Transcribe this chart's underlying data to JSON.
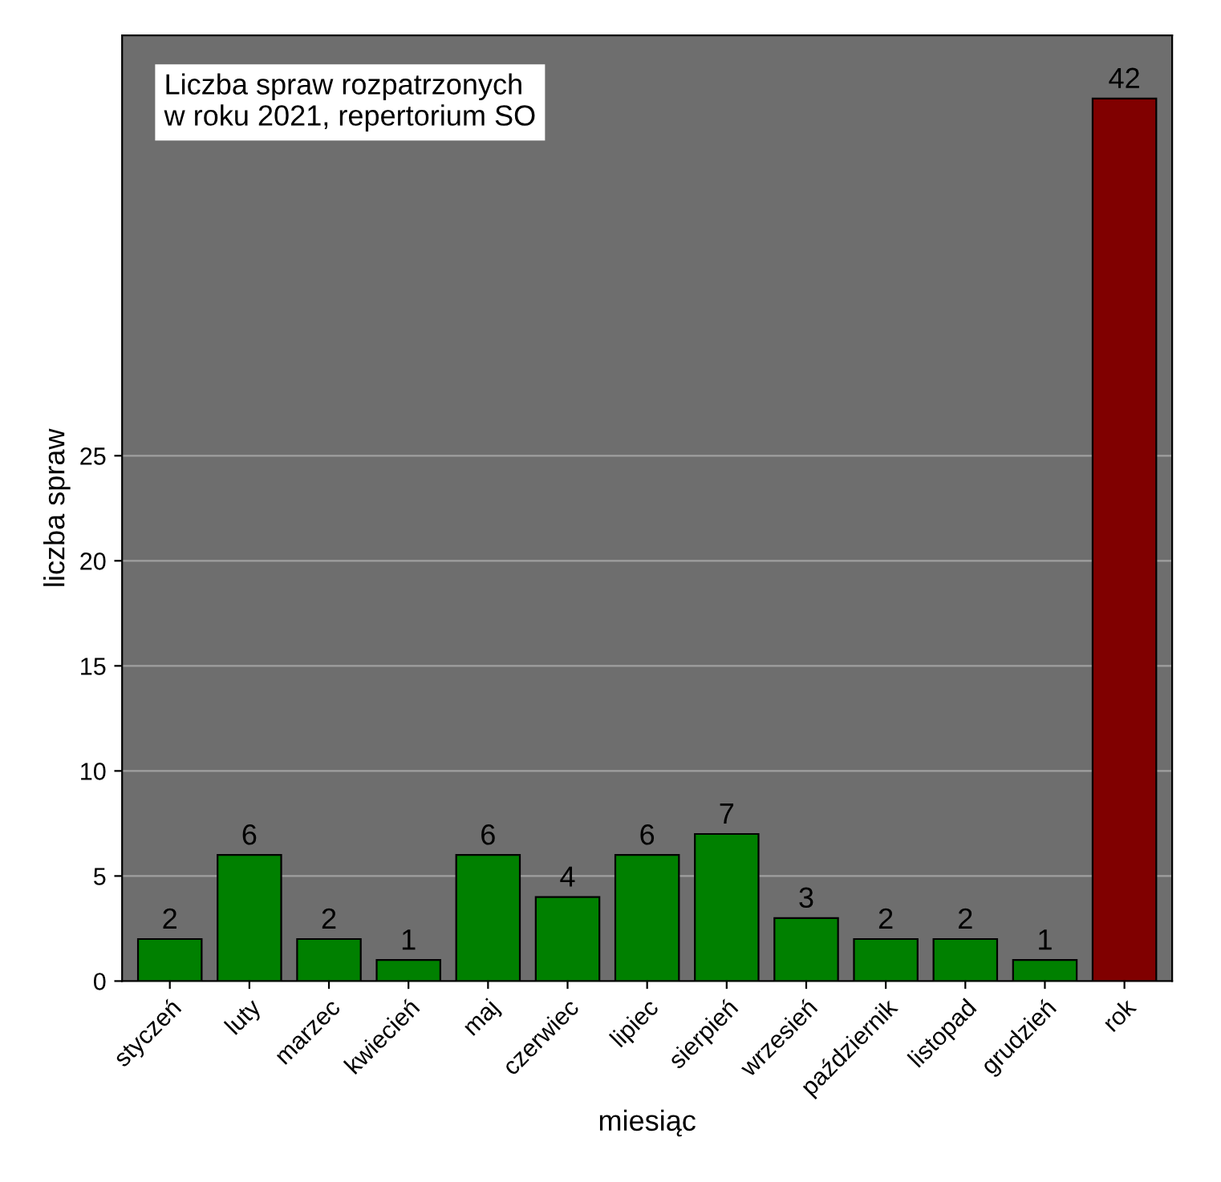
{
  "chart_data": {
    "type": "bar",
    "title": "Liczba spraw rozpatrzonych\nw roku 2021, repertorium SO",
    "xlabel": "miesiąc",
    "ylabel": "liczba spraw",
    "categories": [
      "styczeń",
      "luty",
      "marzec",
      "kwiecień",
      "maj",
      "czerwiec",
      "lipiec",
      "sierpień",
      "wrzesień",
      "październik",
      "listopad",
      "grudzień",
      "rok"
    ],
    "values": [
      2,
      6,
      2,
      1,
      6,
      4,
      6,
      7,
      3,
      2,
      2,
      1,
      42
    ],
    "colors": [
      "#008000",
      "#008000",
      "#008000",
      "#008000",
      "#008000",
      "#008000",
      "#008000",
      "#008000",
      "#008000",
      "#008000",
      "#008000",
      "#008000",
      "#800000"
    ],
    "ylim": [
      0,
      45
    ],
    "yticks": [
      0,
      5,
      10,
      15,
      20,
      25
    ],
    "grid": "y",
    "data_labels": true
  }
}
